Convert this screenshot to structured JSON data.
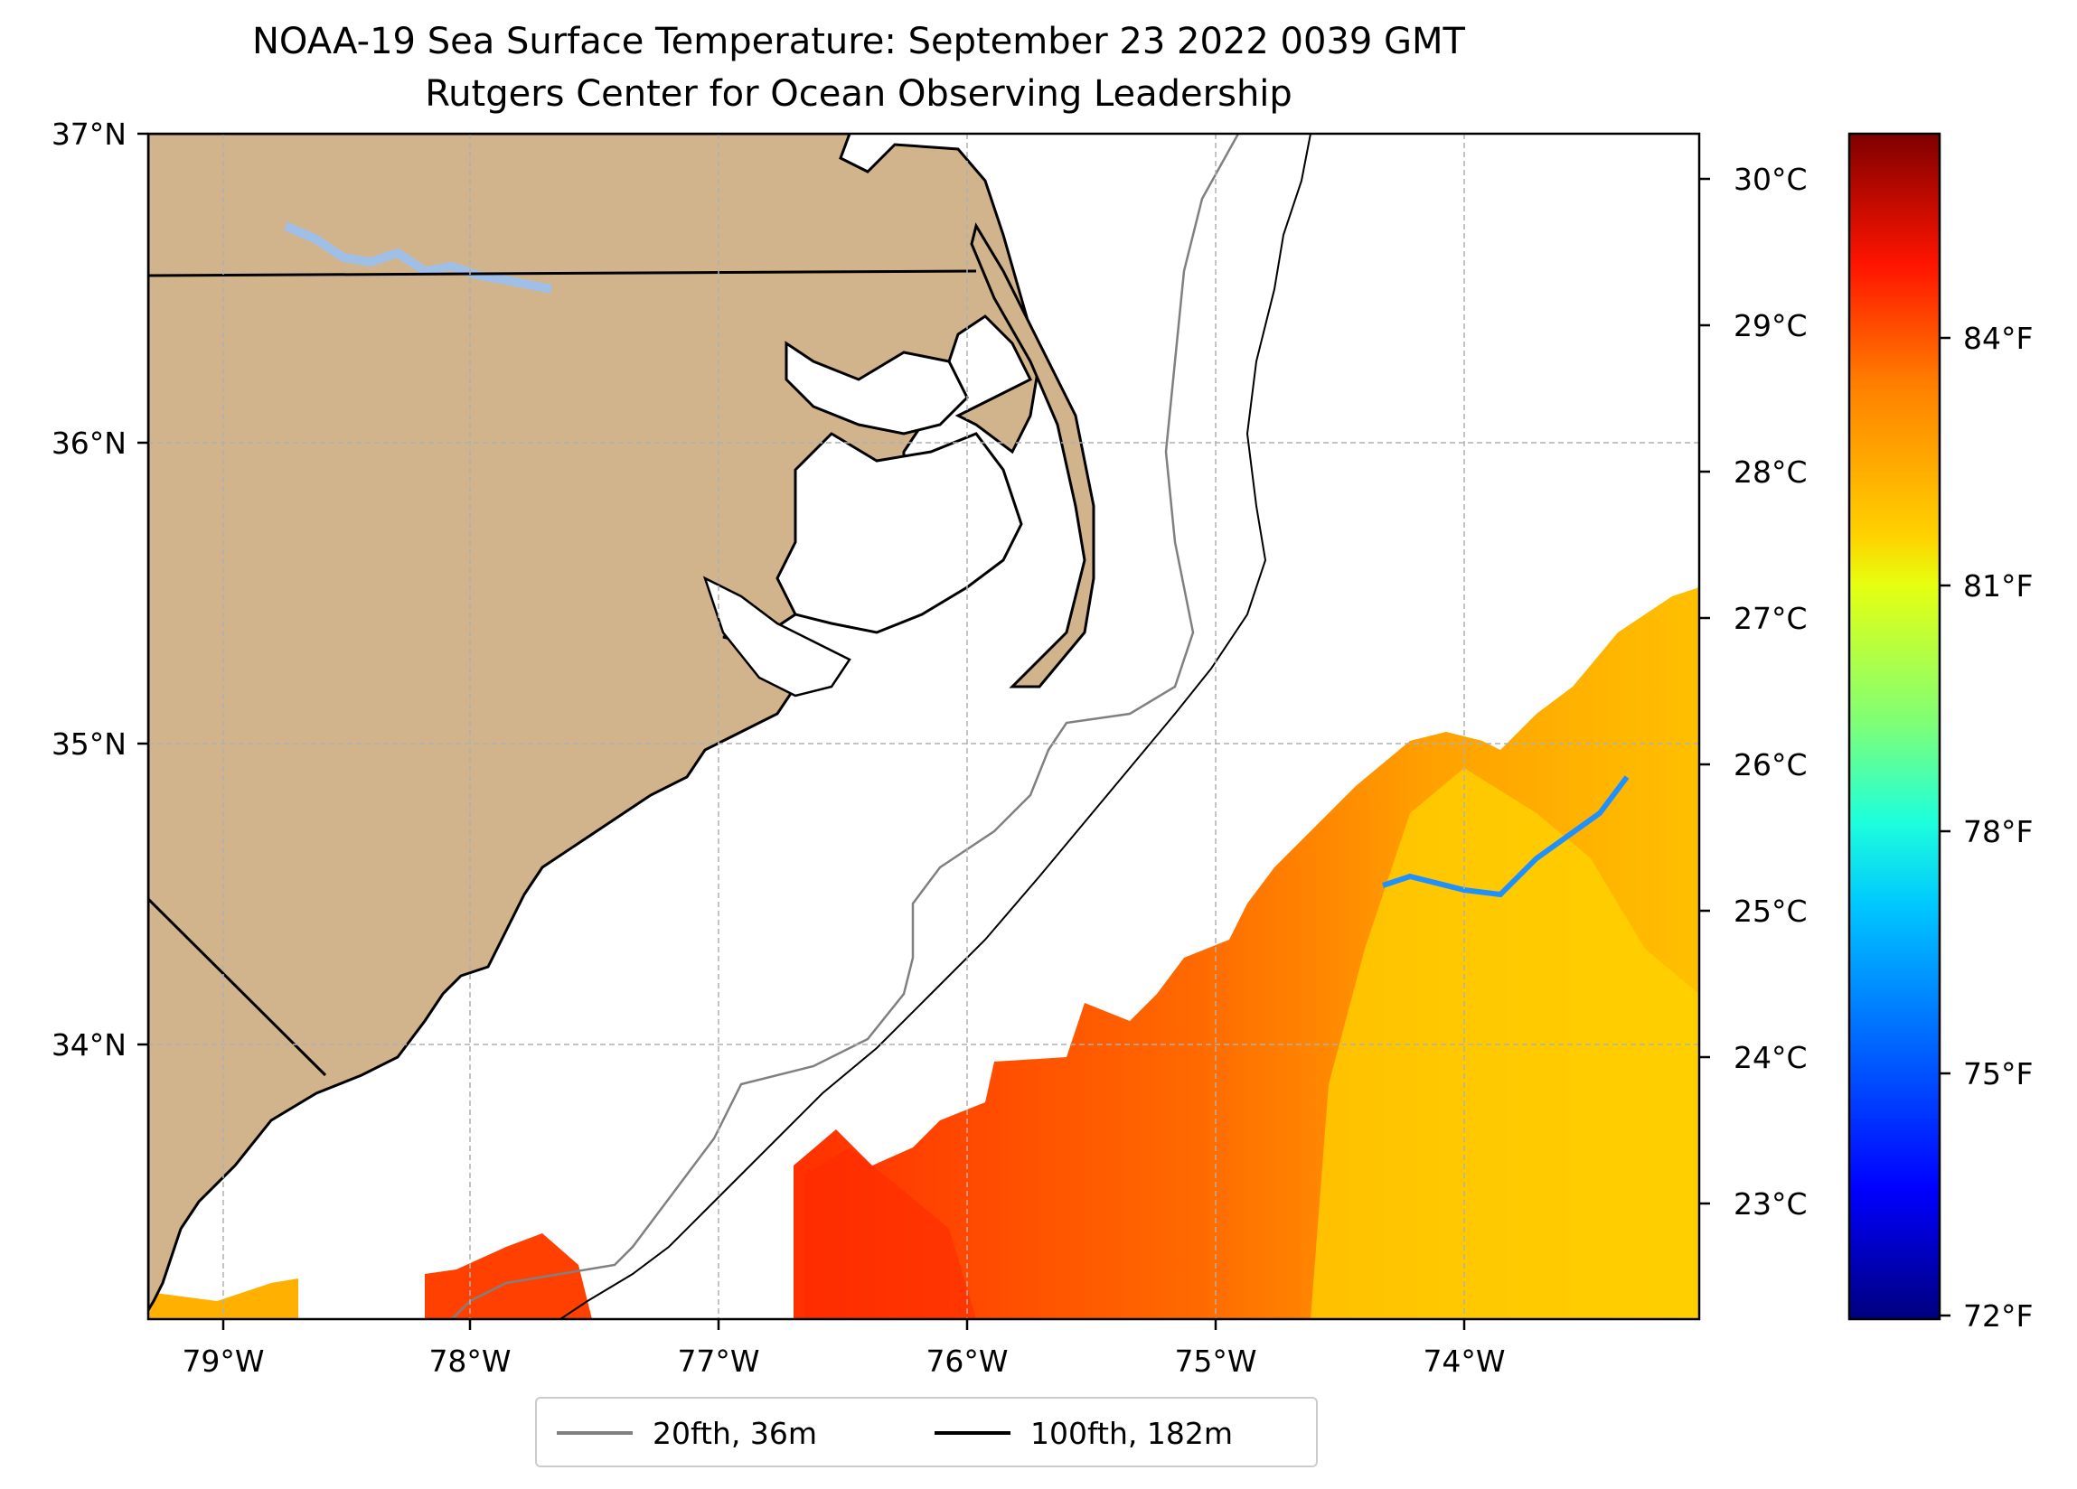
{
  "title": "NOAA-19 Sea Surface Temperature: September 23 2022 0039 GMT",
  "subtitle": "Rutgers Center for Ocean Observing Leadership",
  "lat_labels": [
    "37°N",
    "36°N",
    "35°N",
    "34°N"
  ],
  "lon_labels": [
    "79°W",
    "78°W",
    "77°W",
    "76°W",
    "75°W",
    "74°W"
  ],
  "colorbar": {
    "celsius_labels": [
      "30°C",
      "29°C",
      "28°C",
      "27°C",
      "26°C",
      "25°C",
      "24°C",
      "23°C"
    ],
    "fahrenheit_labels": [
      "84°F",
      "81°F",
      "78°F",
      "75°F",
      "72°F"
    ]
  },
  "legend": [
    {
      "label": "20fth, 36m",
      "color": "#808080"
    },
    {
      "label": "100fth, 182m",
      "color": "#000000"
    }
  ],
  "colors": {
    "land": "#d2b48c",
    "lake": "#a0bfe6",
    "coast": "#000000"
  }
}
